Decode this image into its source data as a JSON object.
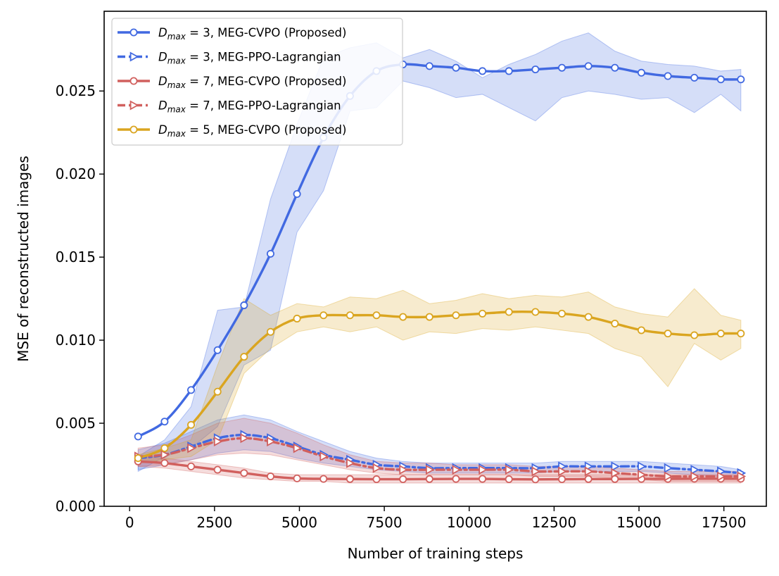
{
  "chart_data": {
    "type": "line",
    "xlabel": "Number of training steps",
    "ylabel": "MSE of reconstructed images",
    "xlim": [
      -750,
      18750
    ],
    "ylim": [
      0.0,
      0.0298
    ],
    "xticks": [
      0,
      2500,
      5000,
      7500,
      10000,
      12500,
      15000,
      17500
    ],
    "xtick_labels": [
      "0",
      "2500",
      "5000",
      "7500",
      "10000",
      "12500",
      "15000",
      "17500"
    ],
    "yticks": [
      0.0,
      0.005,
      0.01,
      0.015,
      0.02,
      0.025
    ],
    "ytick_labels": [
      "0.000",
      "0.005",
      "0.010",
      "0.015",
      "0.020",
      "0.025"
    ],
    "grid": false,
    "legend_position": "top-left",
    "x": [
      250,
      1030,
      1810,
      2590,
      3370,
      4150,
      4930,
      5710,
      6490,
      7270,
      8050,
      8830,
      9610,
      10390,
      11170,
      11950,
      12730,
      13510,
      14290,
      15070,
      15850,
      16630,
      17410,
      18000
    ],
    "series": [
      {
        "legend_label": "D_max = 3, MEG-CVPO (Proposed)",
        "legend_main": "D",
        "legend_sub": "max",
        "legend_rest": " = 3, MEG-CVPO (Proposed)",
        "color": "#4169e1",
        "linestyle": "solid",
        "marker": "circle",
        "values": [
          0.0042,
          0.0051,
          0.007,
          0.0094,
          0.0121,
          0.0152,
          0.0188,
          0.0222,
          0.0247,
          0.0262,
          0.0266,
          0.0265,
          0.0264,
          0.0262,
          0.0262,
          0.0263,
          0.0264,
          0.0265,
          0.0264,
          0.0261,
          0.0259,
          0.0258,
          0.0257,
          0.0257
        ],
        "band_upper": [
          0.003,
          0.004,
          0.006,
          0.0118,
          0.012,
          0.0185,
          0.023,
          0.027,
          0.0276,
          0.0279,
          0.027,
          0.0275,
          0.0268,
          0.0258,
          0.0266,
          0.0272,
          0.028,
          0.0285,
          0.0274,
          0.0268,
          0.0266,
          0.0265,
          0.0262,
          0.0263
        ],
        "band_lower": [
          0.0021,
          0.003,
          0.0035,
          0.0048,
          0.0085,
          0.0094,
          0.0165,
          0.019,
          0.0238,
          0.024,
          0.0256,
          0.0252,
          0.0246,
          0.0248,
          0.024,
          0.0232,
          0.0246,
          0.025,
          0.0248,
          0.0245,
          0.0246,
          0.0237,
          0.0248,
          0.0238
        ]
      },
      {
        "legend_label": "D_max = 3, MEG-PPO-Lagrangian",
        "legend_main": "D",
        "legend_sub": "max",
        "legend_rest": " = 3, MEG-PPO-Lagrangian",
        "color": "#4169e1",
        "linestyle": "dashdot",
        "marker": "triangle-right",
        "values": [
          0.0029,
          0.0031,
          0.0036,
          0.0041,
          0.0043,
          0.0041,
          0.0036,
          0.0031,
          0.0028,
          0.0025,
          0.0024,
          0.0023,
          0.0023,
          0.0023,
          0.0023,
          0.0023,
          0.0024,
          0.0024,
          0.0024,
          0.0024,
          0.0023,
          0.0022,
          0.0021,
          0.002
        ],
        "band_upper": [
          0.0034,
          0.0038,
          0.0045,
          0.0052,
          0.0055,
          0.0052,
          0.0045,
          0.0039,
          0.0033,
          0.0029,
          0.0027,
          0.0026,
          0.0026,
          0.0026,
          0.0026,
          0.0026,
          0.0027,
          0.0027,
          0.0027,
          0.0027,
          0.0026,
          0.0025,
          0.0024,
          0.0022
        ],
        "band_lower": [
          0.0022,
          0.0025,
          0.0028,
          0.0032,
          0.0034,
          0.0033,
          0.0029,
          0.0026,
          0.0024,
          0.0022,
          0.0021,
          0.002,
          0.002,
          0.002,
          0.002,
          0.002,
          0.0021,
          0.0021,
          0.0021,
          0.0021,
          0.002,
          0.0019,
          0.0018,
          0.0018
        ]
      },
      {
        "legend_label": "D_max = 7, MEG-CVPO (Proposed)",
        "legend_main": "D",
        "legend_sub": "max",
        "legend_rest": " = 7, MEG-CVPO (Proposed)",
        "color": "#d1605e",
        "linestyle": "solid",
        "marker": "circle",
        "values": [
          0.0027,
          0.0026,
          0.0024,
          0.0022,
          0.002,
          0.0018,
          0.00168,
          0.00165,
          0.00164,
          0.00163,
          0.00163,
          0.00164,
          0.00165,
          0.00165,
          0.00163,
          0.00162,
          0.00163,
          0.00164,
          0.00164,
          0.00165,
          0.00165,
          0.00166,
          0.00166,
          0.00166
        ],
        "band_upper": [
          0.003,
          0.0029,
          0.0027,
          0.0025,
          0.0023,
          0.002,
          0.0019,
          0.0019,
          0.0019,
          0.0019,
          0.0019,
          0.0019,
          0.0019,
          0.0019,
          0.0019,
          0.0019,
          0.0019,
          0.0019,
          0.0019,
          0.0019,
          0.0019,
          0.0019,
          0.0019,
          0.0019
        ],
        "band_lower": [
          0.0024,
          0.0023,
          0.0021,
          0.0019,
          0.0017,
          0.0016,
          0.0015,
          0.0015,
          0.0014,
          0.0014,
          0.0014,
          0.0014,
          0.0014,
          0.0014,
          0.0014,
          0.0014,
          0.0014,
          0.0014,
          0.0014,
          0.0014,
          0.0014,
          0.0014,
          0.0014,
          0.0014
        ]
      },
      {
        "legend_label": "D_max = 7, MEG-PPO-Lagrangian",
        "legend_main": "D",
        "legend_sub": "max",
        "legend_rest": " = 7, MEG-PPO-Lagrangian",
        "color": "#d1605e",
        "linestyle": "dashdot",
        "marker": "triangle-right",
        "values": [
          0.003,
          0.0031,
          0.0035,
          0.0039,
          0.0041,
          0.0039,
          0.0035,
          0.003,
          0.0026,
          0.0023,
          0.0022,
          0.0022,
          0.0022,
          0.0022,
          0.0022,
          0.0021,
          0.0021,
          0.0021,
          0.002,
          0.0019,
          0.0018,
          0.0018,
          0.0018,
          0.0018
        ],
        "band_upper": [
          0.0035,
          0.0037,
          0.0043,
          0.005,
          0.0053,
          0.005,
          0.0044,
          0.0037,
          0.0031,
          0.0027,
          0.0026,
          0.0026,
          0.0025,
          0.0025,
          0.0025,
          0.0024,
          0.0024,
          0.0024,
          0.0023,
          0.0022,
          0.0021,
          0.0021,
          0.0021,
          0.0021
        ],
        "band_lower": [
          0.0024,
          0.0025,
          0.0028,
          0.0031,
          0.0032,
          0.0031,
          0.0028,
          0.0025,
          0.0022,
          0.002,
          0.0019,
          0.0019,
          0.0019,
          0.0019,
          0.0019,
          0.0018,
          0.0018,
          0.0018,
          0.0017,
          0.0016,
          0.0015,
          0.0015,
          0.0015,
          0.0015
        ]
      },
      {
        "legend_label": "D_max = 5, MEG-CVPO (Proposed)",
        "legend_main": "D",
        "legend_sub": "max",
        "legend_rest": " = 5, MEG-CVPO (Proposed)",
        "color": "#daa520",
        "linestyle": "solid",
        "marker": "circle",
        "values": [
          0.0029,
          0.0035,
          0.0049,
          0.0069,
          0.009,
          0.0105,
          0.0113,
          0.0115,
          0.0115,
          0.0115,
          0.0114,
          0.0114,
          0.0115,
          0.0116,
          0.0117,
          0.0117,
          0.0116,
          0.0114,
          0.011,
          0.0106,
          0.0104,
          0.0103,
          0.0104,
          0.0104
        ],
        "band_upper": [
          0.0031,
          0.0035,
          0.004,
          0.0085,
          0.0125,
          0.0115,
          0.0122,
          0.012,
          0.0126,
          0.0125,
          0.013,
          0.0122,
          0.0124,
          0.0128,
          0.0125,
          0.0127,
          0.0126,
          0.0129,
          0.012,
          0.0116,
          0.0114,
          0.0131,
          0.0115,
          0.0112
        ],
        "band_lower": [
          0.0026,
          0.0028,
          0.003,
          0.004,
          0.008,
          0.0095,
          0.0105,
          0.0108,
          0.0105,
          0.0108,
          0.01,
          0.0105,
          0.0104,
          0.0107,
          0.0106,
          0.0108,
          0.0106,
          0.0104,
          0.0095,
          0.009,
          0.0072,
          0.0098,
          0.0088,
          0.0095
        ]
      }
    ]
  }
}
